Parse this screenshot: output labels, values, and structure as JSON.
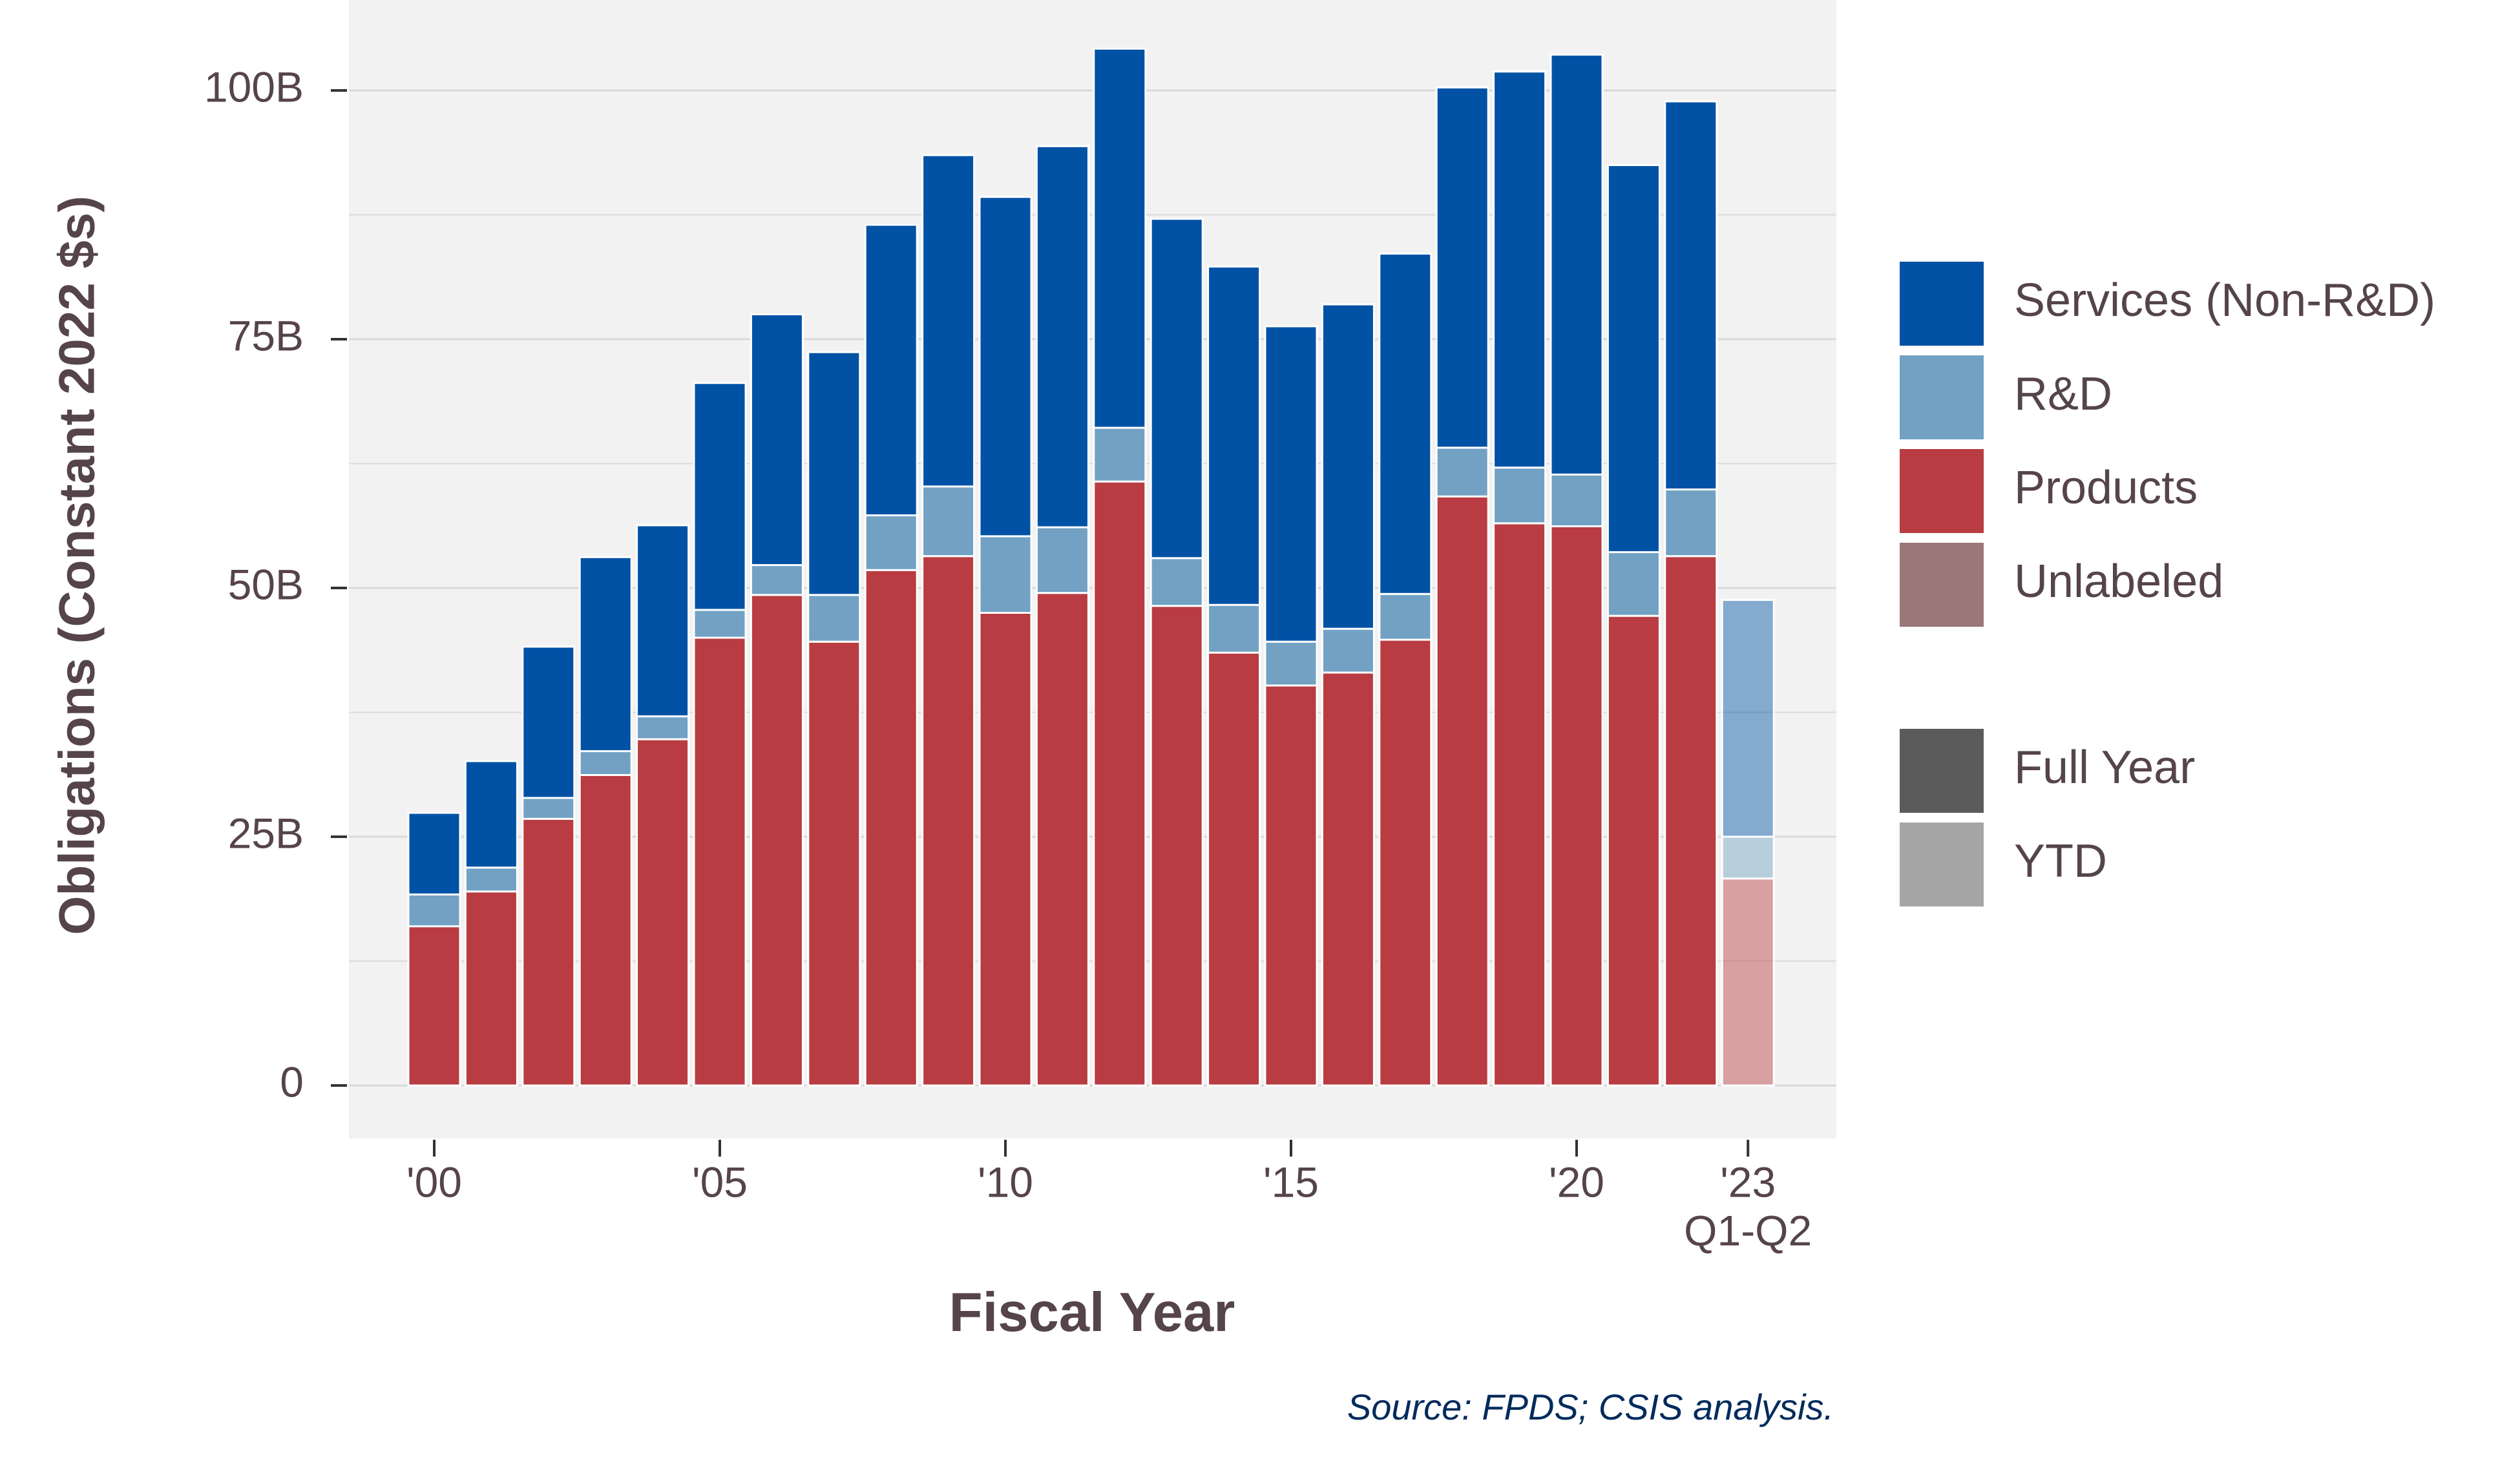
{
  "chart_data": {
    "type": "bar",
    "stacked": true,
    "xlabel": "Fiscal Year",
    "ylabel": "Obligations (Constant 2022 $s)",
    "ylim": [
      -5,
      105
    ],
    "y_ticks": [
      {
        "value": 0,
        "label": "0"
      },
      {
        "value": 25,
        "label": "25B"
      },
      {
        "value": 50,
        "label": "50B"
      },
      {
        "value": 75,
        "label": "75B"
      },
      {
        "value": 100,
        "label": "100B"
      }
    ],
    "x_ticks": [
      {
        "year": 2000,
        "label": "'00"
      },
      {
        "year": 2005,
        "label": "'05"
      },
      {
        "year": 2010,
        "label": "'10"
      },
      {
        "year": 2015,
        "label": "'15"
      },
      {
        "year": 2020,
        "label": "'20"
      },
      {
        "year": 2023,
        "label": "'23",
        "sublabel": "Q1-Q2"
      }
    ],
    "years": [
      2000,
      2001,
      2002,
      2003,
      2004,
      2005,
      2006,
      2007,
      2008,
      2009,
      2010,
      2011,
      2012,
      2013,
      2014,
      2015,
      2016,
      2017,
      2018,
      2019,
      2020,
      2021,
      2022,
      2023
    ],
    "period": [
      "Full Year",
      "Full Year",
      "Full Year",
      "Full Year",
      "Full Year",
      "Full Year",
      "Full Year",
      "Full Year",
      "Full Year",
      "Full Year",
      "Full Year",
      "Full Year",
      "Full Year",
      "Full Year",
      "Full Year",
      "Full Year",
      "Full Year",
      "Full Year",
      "Full Year",
      "Full Year",
      "Full Year",
      "Full Year",
      "Full Year",
      "YTD"
    ],
    "series": [
      {
        "name": "Products",
        "color": "#b83c41",
        "values": [
          16,
          19.5,
          26.8,
          31.2,
          34.8,
          45,
          49.3,
          44.6,
          51.8,
          53.2,
          47.5,
          49.5,
          60.7,
          48.2,
          43.5,
          40.2,
          41.5,
          44.8,
          59.2,
          56.5,
          56.2,
          47.2,
          53.2,
          20.8
        ]
      },
      {
        "name": "R&D",
        "color": "#72a1c4",
        "values": [
          3.2,
          2.4,
          2.1,
          2.4,
          2.3,
          2.8,
          3.0,
          4.7,
          5.5,
          7.0,
          7.7,
          6.6,
          5.4,
          4.8,
          4.8,
          4.4,
          4.4,
          4.6,
          4.9,
          5.6,
          5.2,
          6.4,
          6.7,
          4.2
        ]
      },
      {
        "name": "Services (Non-R&D)",
        "color": "#0152a5",
        "values": [
          8.2,
          10.7,
          15.2,
          19.5,
          19.2,
          22.8,
          25.2,
          24.4,
          29.2,
          33.3,
          34.1,
          38.3,
          38.1,
          34.1,
          34.0,
          31.7,
          32.6,
          34.2,
          36.2,
          39.8,
          42.2,
          38.9,
          39.0,
          23.8
        ]
      },
      {
        "name": "Unlabeled",
        "color": "#9a7877",
        "values": [
          0,
          0,
          0,
          0,
          0,
          0,
          0,
          0,
          0,
          0,
          0,
          0,
          0,
          0,
          0,
          0,
          0,
          0,
          0,
          0,
          0,
          0,
          0,
          0
        ]
      }
    ],
    "legend_placement": "right",
    "legend": {
      "categories": [
        {
          "name": "Services (Non-R&D)",
          "color": "#0152a5"
        },
        {
          "name": "R&D",
          "color": "#72a1c4"
        },
        {
          "name": "Products",
          "color": "#b83c41"
        },
        {
          "name": "Unlabeled",
          "color": "#9a7877"
        }
      ],
      "periods": [
        {
          "name": "Full Year",
          "color": "#5b5b5b"
        },
        {
          "name": "YTD",
          "color": "#a6a6a6"
        }
      ]
    },
    "grid": true,
    "source_note": "Source: FPDS; CSIS analysis.",
    "colors": {
      "panel_background": "#f2f2f2",
      "gridline": "#d9d9d9",
      "text": "#554449",
      "source_text": "#002b5c"
    }
  }
}
